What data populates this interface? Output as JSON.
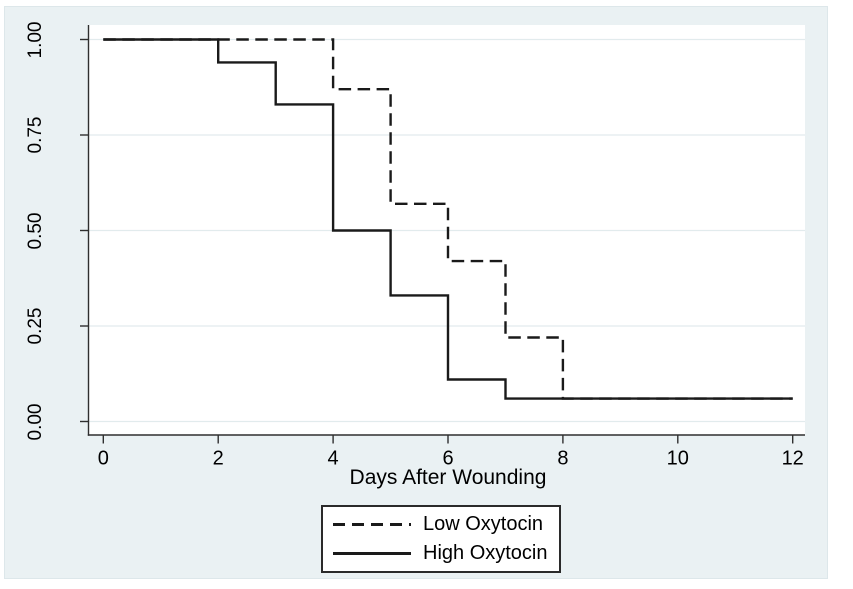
{
  "figure": {
    "background_color": "#eaf1f3",
    "plot_background": "#ffffff",
    "grid_color": "#e2ebed",
    "axis_color": "#2f2f2f",
    "line_color": "#1a1a1a",
    "text_color": "#000000"
  },
  "chart_data": {
    "type": "line",
    "subtype": "kaplan-meier-step",
    "title": "",
    "xlabel": "Days After Wounding",
    "ylabel": "",
    "xlim": [
      0,
      12
    ],
    "ylim": [
      0,
      1
    ],
    "grid": true,
    "legend_position": "bottom-center",
    "x_ticks": [
      {
        "value": 0,
        "label": "0"
      },
      {
        "value": 2,
        "label": "2"
      },
      {
        "value": 4,
        "label": "4"
      },
      {
        "value": 6,
        "label": "6"
      },
      {
        "value": 8,
        "label": "8"
      },
      {
        "value": 10,
        "label": "10"
      },
      {
        "value": 12,
        "label": "12"
      }
    ],
    "y_ticks": [
      {
        "value": 0.0,
        "label": "0.00"
      },
      {
        "value": 0.25,
        "label": "0.25"
      },
      {
        "value": 0.5,
        "label": "0.50"
      },
      {
        "value": 0.75,
        "label": "0.75"
      },
      {
        "value": 1.0,
        "label": "1.00"
      }
    ],
    "series": [
      {
        "name": "High Oxytocin",
        "style": "solid",
        "color": "#1a1a1a",
        "points": [
          [
            0,
            1.0
          ],
          [
            2,
            1.0
          ],
          [
            2,
            0.94
          ],
          [
            3,
            0.94
          ],
          [
            3,
            0.83
          ],
          [
            4,
            0.83
          ],
          [
            4,
            0.5
          ],
          [
            5,
            0.5
          ],
          [
            5,
            0.33
          ],
          [
            6,
            0.33
          ],
          [
            6,
            0.11
          ],
          [
            7,
            0.11
          ],
          [
            7,
            0.06
          ],
          [
            12,
            0.06
          ]
        ]
      },
      {
        "name": "Low Oxytocin",
        "style": "dashed",
        "color": "#1a1a1a",
        "points": [
          [
            0,
            1.0
          ],
          [
            4,
            1.0
          ],
          [
            4,
            0.87
          ],
          [
            5,
            0.87
          ],
          [
            5,
            0.57
          ],
          [
            6,
            0.57
          ],
          [
            6,
            0.42
          ],
          [
            7,
            0.42
          ],
          [
            7,
            0.22
          ],
          [
            8,
            0.22
          ],
          [
            8,
            0.06
          ],
          [
            12,
            0.06
          ]
        ]
      }
    ]
  },
  "legend": {
    "items": [
      {
        "label": "Low Oxytocin",
        "style": "dashed"
      },
      {
        "label": "High Oxytocin",
        "style": "solid"
      }
    ]
  }
}
